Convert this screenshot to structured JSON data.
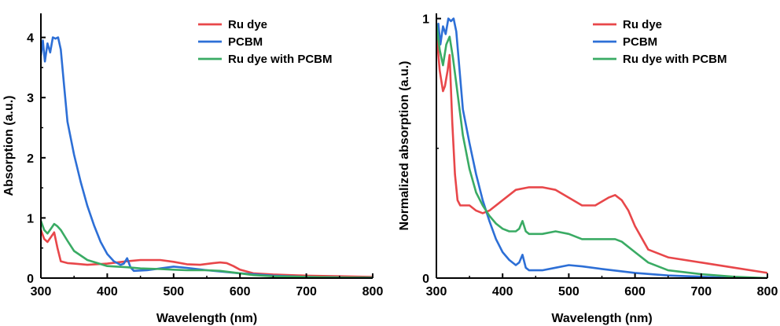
{
  "chart_data": [
    {
      "type": "line",
      "xlabel": "Wavelength (nm)",
      "ylabel": "Absorption (a.u.)",
      "xlim": [
        300,
        800
      ],
      "ylim": [
        0,
        4.4
      ],
      "xticks": [
        "300",
        "400",
        "500",
        "600",
        "700",
        "800"
      ],
      "yticks": [
        "0",
        "1",
        "2",
        "3",
        "4"
      ],
      "legend_position": "top-right",
      "series": [
        {
          "name": "Ru dye",
          "color": "#e8474a",
          "x": [
            300,
            305,
            310,
            315,
            320,
            325,
            330,
            340,
            350,
            370,
            400,
            430,
            450,
            480,
            500,
            520,
            540,
            560,
            570,
            580,
            590,
            600,
            620,
            650,
            700,
            750,
            800
          ],
          "y": [
            0.8,
            0.65,
            0.6,
            0.68,
            0.76,
            0.5,
            0.28,
            0.25,
            0.24,
            0.22,
            0.24,
            0.28,
            0.3,
            0.3,
            0.27,
            0.23,
            0.22,
            0.25,
            0.26,
            0.25,
            0.2,
            0.14,
            0.08,
            0.06,
            0.04,
            0.03,
            0.02
          ]
        },
        {
          "name": "PCBM",
          "color": "#2d6fd6",
          "x": [
            300,
            303,
            306,
            310,
            314,
            318,
            322,
            326,
            330,
            335,
            340,
            350,
            360,
            370,
            380,
            390,
            400,
            410,
            420,
            425,
            430,
            435,
            440,
            460,
            480,
            500,
            520,
            550,
            600,
            650,
            700,
            750,
            800
          ],
          "y": [
            3.7,
            3.95,
            3.6,
            3.9,
            3.75,
            4.0,
            3.98,
            4.0,
            3.8,
            3.2,
            2.6,
            2.05,
            1.6,
            1.2,
            0.88,
            0.6,
            0.4,
            0.28,
            0.22,
            0.24,
            0.33,
            0.18,
            0.12,
            0.13,
            0.16,
            0.19,
            0.17,
            0.13,
            0.08,
            0.04,
            0.02,
            0.01,
            0.005
          ]
        },
        {
          "name": "Ru dye with PCBM",
          "color": "#3aab64",
          "x": [
            300,
            305,
            310,
            315,
            320,
            325,
            330,
            340,
            350,
            370,
            400,
            430,
            450,
            480,
            500,
            520,
            550,
            570,
            600,
            620,
            650,
            700,
            750,
            800
          ],
          "y": [
            0.95,
            0.8,
            0.74,
            0.82,
            0.9,
            0.86,
            0.8,
            0.62,
            0.45,
            0.3,
            0.2,
            0.18,
            0.16,
            0.15,
            0.14,
            0.13,
            0.13,
            0.12,
            0.08,
            0.05,
            0.03,
            0.02,
            0.01,
            0.005
          ]
        }
      ]
    },
    {
      "type": "line",
      "xlabel": "Wavelength (nm)",
      "ylabel": "Normalized absorption (a.u.)",
      "xlim": [
        300,
        800
      ],
      "ylim": [
        0,
        1.02
      ],
      "xticks": [
        "300",
        "400",
        "500",
        "600",
        "700",
        "800"
      ],
      "yticks": [
        "0",
        "1"
      ],
      "legend_position": "top-right",
      "series": [
        {
          "name": "Ru dye",
          "color": "#e8474a",
          "x": [
            300,
            305,
            310,
            313,
            317,
            320,
            324,
            328,
            332,
            336,
            340,
            350,
            360,
            370,
            380,
            400,
            420,
            440,
            460,
            480,
            500,
            520,
            540,
            560,
            570,
            580,
            590,
            600,
            620,
            650,
            700,
            750,
            800
          ],
          "y": [
            0.95,
            0.8,
            0.72,
            0.74,
            0.8,
            0.86,
            0.6,
            0.4,
            0.3,
            0.28,
            0.28,
            0.28,
            0.26,
            0.25,
            0.26,
            0.3,
            0.34,
            0.35,
            0.35,
            0.34,
            0.31,
            0.28,
            0.28,
            0.31,
            0.32,
            0.3,
            0.26,
            0.2,
            0.11,
            0.08,
            0.06,
            0.04,
            0.02
          ]
        },
        {
          "name": "PCBM",
          "color": "#2d6fd6",
          "x": [
            300,
            303,
            306,
            310,
            314,
            318,
            322,
            326,
            330,
            340,
            350,
            360,
            370,
            380,
            390,
            400,
            410,
            420,
            425,
            430,
            435,
            440,
            460,
            480,
            500,
            520,
            550,
            600,
            650,
            700,
            750,
            800
          ],
          "y": [
            0.92,
            0.98,
            0.9,
            0.97,
            0.94,
            1.0,
            0.99,
            1.0,
            0.95,
            0.65,
            0.52,
            0.4,
            0.3,
            0.22,
            0.15,
            0.1,
            0.07,
            0.05,
            0.06,
            0.09,
            0.04,
            0.03,
            0.03,
            0.04,
            0.05,
            0.045,
            0.035,
            0.02,
            0.01,
            0.005,
            0.0,
            0.0
          ]
        },
        {
          "name": "Ru dye with PCBM",
          "color": "#3aab64",
          "x": [
            300,
            305,
            310,
            315,
            320,
            325,
            330,
            340,
            350,
            360,
            370,
            380,
            390,
            400,
            410,
            420,
            425,
            430,
            435,
            440,
            460,
            480,
            500,
            520,
            540,
            560,
            570,
            580,
            600,
            620,
            650,
            700,
            750,
            800
          ],
          "y": [
            0.98,
            0.88,
            0.82,
            0.9,
            0.93,
            0.85,
            0.75,
            0.55,
            0.42,
            0.33,
            0.28,
            0.24,
            0.21,
            0.19,
            0.18,
            0.18,
            0.19,
            0.22,
            0.18,
            0.17,
            0.17,
            0.18,
            0.17,
            0.15,
            0.15,
            0.15,
            0.15,
            0.14,
            0.1,
            0.06,
            0.03,
            0.015,
            0.005,
            0.0
          ]
        }
      ]
    }
  ]
}
